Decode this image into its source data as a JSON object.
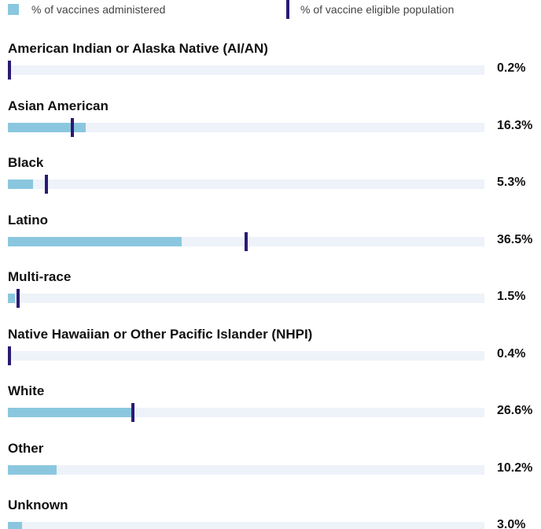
{
  "legend": {
    "administered_label": "% of vaccines administered",
    "eligible_label": "% of vaccine eligible population"
  },
  "colors": {
    "administered": "#8ac7df",
    "eligible": "#2a1a74",
    "track": "#eef2f9"
  },
  "chart_data": {
    "type": "bar",
    "orientation": "horizontal",
    "title": "",
    "xlabel": "",
    "ylabel": "",
    "xlim": [
      0,
      100
    ],
    "legend": [
      "% of vaccines administered",
      "% of vaccine eligible population"
    ],
    "legend_placement": "top",
    "categories": [
      "American Indian or Alaska Native (AI/AN)",
      "Asian American",
      "Black",
      "Latino",
      "Multi-race",
      "Native Hawaiian or Other Pacific Islander (NHPI)",
      "White",
      "Other",
      "Unknown"
    ],
    "value_labels": [
      "0.2%",
      "16.3%",
      "5.3%",
      "36.5%",
      "1.5%",
      "0.4%",
      "26.6%",
      "10.2%",
      "3.0%"
    ],
    "series": [
      {
        "name": "% of vaccines administered",
        "values": [
          0.2,
          16.3,
          5.3,
          36.5,
          1.5,
          0.4,
          26.6,
          10.2,
          3.0
        ]
      },
      {
        "name": "% of vaccine eligible population",
        "values": [
          0.3,
          13.6,
          8.1,
          50.0,
          2.2,
          0.3,
          26.3,
          null,
          null
        ]
      }
    ]
  }
}
